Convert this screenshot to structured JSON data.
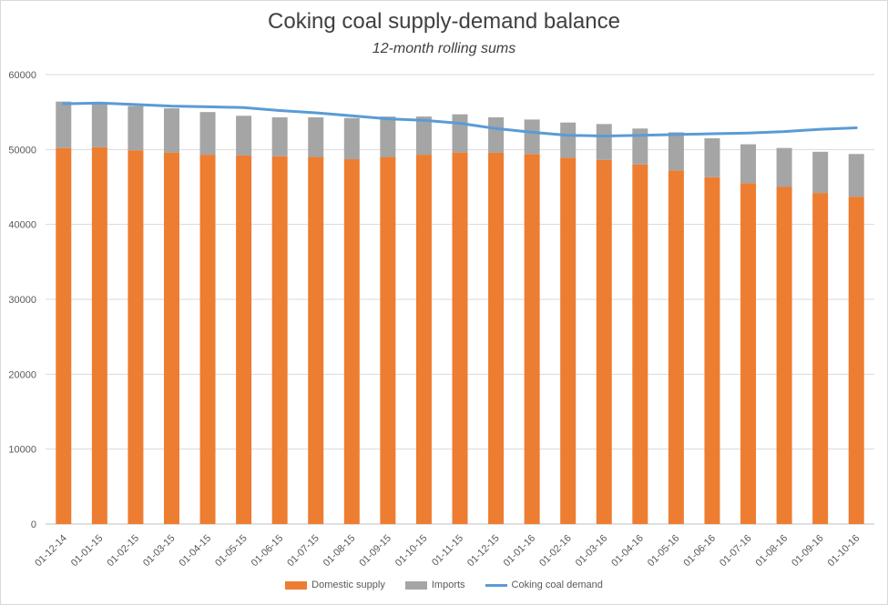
{
  "chart_data": {
    "type": "bar",
    "title": "Coking coal supply-demand balance",
    "subtitle": "12-month rolling sums",
    "xlabel": "",
    "ylabel": "",
    "ylim": [
      0,
      60000
    ],
    "yticks": [
      0,
      10000,
      20000,
      30000,
      40000,
      50000,
      60000
    ],
    "grid": true,
    "legend_position": "bottom",
    "categories": [
      "01-12-14",
      "01-01-15",
      "01-02-15",
      "01-03-15",
      "01-04-15",
      "01-05-15",
      "01-06-15",
      "01-07-15",
      "01-08-15",
      "01-09-15",
      "01-10-15",
      "01-11-15",
      "01-12-15",
      "01-01-16",
      "01-02-16",
      "01-03-16",
      "01-04-16",
      "01-05-16",
      "01-06-16",
      "01-07-16",
      "01-08-16",
      "01-09-16",
      "01-10-16"
    ],
    "series": [
      {
        "name": "Domestic supply",
        "kind": "stacked-bar",
        "color": "#ED7D31",
        "values": [
          50200,
          50300,
          49900,
          49600,
          49300,
          49200,
          49100,
          49000,
          48700,
          49000,
          49300,
          49600,
          49600,
          49400,
          48900,
          48600,
          48000,
          47200,
          46300,
          45500,
          45000,
          44200,
          43700
        ]
      },
      {
        "name": "Imports",
        "kind": "stacked-bar",
        "color": "#A5A5A5",
        "values": [
          6200,
          5800,
          5900,
          5900,
          5700,
          5300,
          5200,
          5300,
          5500,
          5400,
          5100,
          5100,
          4700,
          4600,
          4700,
          4800,
          4800,
          5100,
          5200,
          5200,
          5200,
          5500,
          5700
        ]
      },
      {
        "name": "Coking coal demand",
        "kind": "line",
        "color": "#5B9BD5",
        "values": [
          56100,
          56200,
          56000,
          55800,
          55700,
          55600,
          55200,
          54900,
          54500,
          54100,
          53900,
          53500,
          52800,
          52300,
          51900,
          51800,
          51900,
          52000,
          52100,
          52200,
          52400,
          52700,
          52900
        ]
      }
    ]
  },
  "colors": {
    "grid": "#d9d9d9",
    "axis": "#bfbfbf",
    "text": "#595959"
  }
}
